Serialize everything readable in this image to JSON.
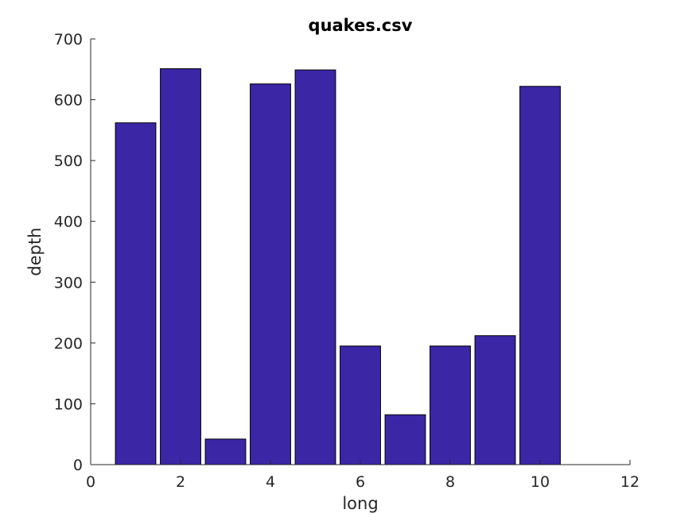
{
  "chart_data": {
    "type": "bar",
    "title": "quakes.csv",
    "xlabel": "long",
    "ylabel": "depth",
    "x": [
      1,
      2,
      3,
      4,
      5,
      6,
      7,
      8,
      9,
      10
    ],
    "values": [
      562,
      651,
      42,
      626,
      649,
      195,
      82,
      195,
      212,
      622
    ],
    "xlim": [
      0,
      12
    ],
    "ylim": [
      0,
      700
    ],
    "xticks": [
      "0",
      "2",
      "4",
      "6",
      "8",
      "10",
      "12"
    ],
    "yticks": [
      "0",
      "100",
      "200",
      "300",
      "400",
      "500",
      "600",
      "700"
    ],
    "grid": false,
    "legend": "none",
    "bar_color": "#3b26a6"
  }
}
